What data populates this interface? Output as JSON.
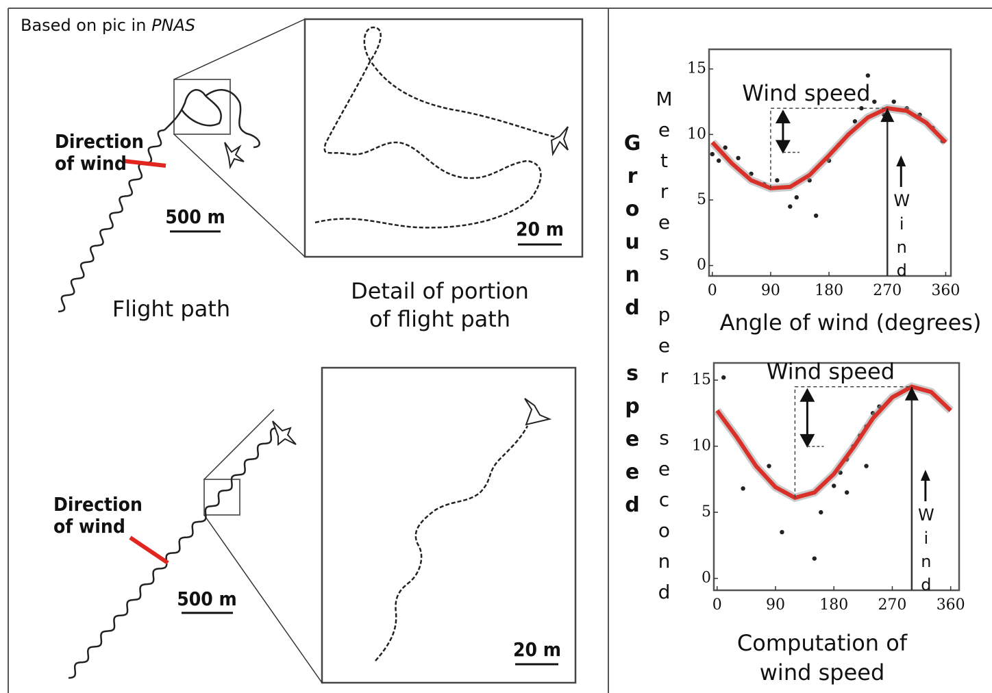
{
  "credit": {
    "prefix": "Based on pic in",
    "source": "PNAS"
  },
  "top_panel": {
    "direction_label": [
      "Direction",
      "of wind"
    ],
    "scale_overview": "500 m",
    "scale_detail": "20 m",
    "caption_overview": "Flight path",
    "caption_detail": [
      "Detail of portion",
      "of flight path"
    ]
  },
  "bottom_panel": {
    "direction_label": [
      "Direction",
      "of wind"
    ],
    "scale_overview": "500 m",
    "scale_detail": "20 m"
  },
  "y_label": "Ground speed",
  "y_units": "Metres per second",
  "caption": [
    "Computation of",
    "wind speed"
  ],
  "chart_data": [
    {
      "type": "scatter",
      "x_label": "Angle of wind (degrees)",
      "wind_speed_label": "Wind speed",
      "wind_label": "Wind",
      "xlim": [
        -5,
        368
      ],
      "ylim": [
        -0.8,
        16.5
      ],
      "xticks": [
        0,
        90,
        180,
        270,
        360
      ],
      "yticks": [
        0,
        5,
        10,
        15
      ],
      "series": [
        {
          "type": "scatter",
          "color": "#222222",
          "x": [
            0,
            10,
            20,
            40,
            60,
            80,
            100,
            120,
            130,
            150,
            160,
            180,
            195,
            210,
            220,
            230,
            240,
            250,
            265,
            280,
            300,
            320,
            340,
            355
          ],
          "values": [
            8.5,
            8,
            9,
            8.2,
            7,
            6.2,
            6.5,
            4.5,
            5.2,
            6.5,
            3.8,
            8,
            9.2,
            10,
            11,
            12,
            14.5,
            12.5,
            11.5,
            12.5,
            12,
            11.5,
            10.5,
            9.5
          ]
        },
        {
          "type": "line",
          "color": "#d9302a",
          "x": [
            0,
            30,
            60,
            90,
            120,
            150,
            180,
            210,
            240,
            270,
            300,
            330,
            360
          ],
          "values": [
            9.4,
            7.8,
            6.5,
            5.9,
            6.0,
            6.9,
            8.4,
            10.0,
            11.3,
            12.0,
            11.8,
            10.9,
            9.4
          ]
        }
      ]
    },
    {
      "type": "scatter",
      "wind_speed_label": "Wind speed",
      "wind_label": "Wind",
      "xlim": [
        -5,
        373
      ],
      "ylim": [
        -0.9,
        16.3
      ],
      "xticks": [
        0,
        90,
        180,
        270,
        360
      ],
      "yticks": [
        0,
        5,
        10,
        15
      ],
      "series": [
        {
          "type": "scatter",
          "color": "#222222",
          "x": [
            10,
            40,
            80,
            100,
            150,
            160,
            180,
            190,
            200,
            210,
            220,
            230,
            240,
            250,
            200,
            230
          ],
          "values": [
            15.2,
            6.8,
            8.5,
            3.5,
            1.5,
            5,
            7,
            8,
            9,
            10,
            10.8,
            11.5,
            12.5,
            13,
            6.5,
            8.5
          ]
        },
        {
          "type": "line",
          "color": "#d9302a",
          "x": [
            0,
            30,
            60,
            90,
            120,
            150,
            180,
            210,
            240,
            270,
            300,
            330,
            360
          ],
          "values": [
            12.7,
            10.7,
            8.5,
            6.9,
            6.1,
            6.5,
            7.9,
            9.9,
            12.1,
            13.7,
            14.5,
            14.1,
            12.7
          ]
        }
      ]
    }
  ]
}
